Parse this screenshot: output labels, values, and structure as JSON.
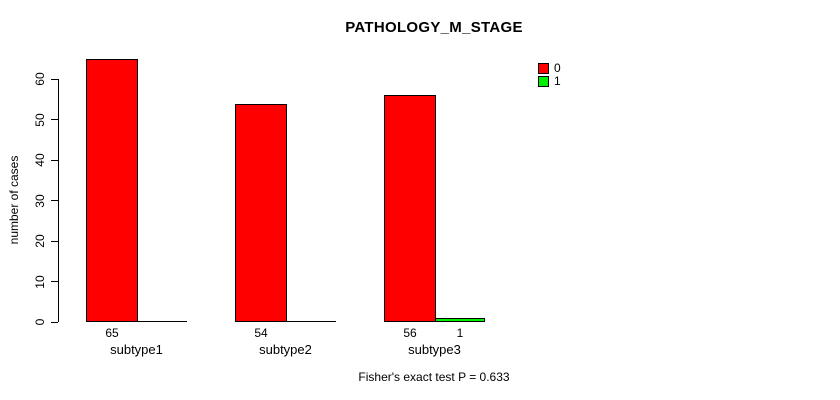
{
  "chart_data": {
    "type": "bar",
    "title": "PATHOLOGY_M_STAGE",
    "ylabel": "number of cases",
    "xlabel": "",
    "categories": [
      "subtype1",
      "subtype2",
      "subtype3"
    ],
    "series": [
      {
        "name": "0",
        "color": "#ff0000",
        "values": [
          65,
          54,
          56
        ]
      },
      {
        "name": "1",
        "color": "#00ee00",
        "values": [
          0,
          0,
          1
        ]
      }
    ],
    "bar_value_labels": [
      [
        "65",
        "54",
        "56"
      ],
      [
        "",
        "",
        "1"
      ]
    ],
    "yticks": [
      0,
      10,
      20,
      30,
      40,
      50,
      60
    ],
    "ylim": [
      0,
      65
    ],
    "grid": false,
    "legend_position": "topright",
    "legend": [
      {
        "label": "0",
        "color": "#ff0000"
      },
      {
        "label": "1",
        "color": "#00ee00"
      }
    ],
    "annotation": "Fisher's exact test P = 0.633"
  }
}
